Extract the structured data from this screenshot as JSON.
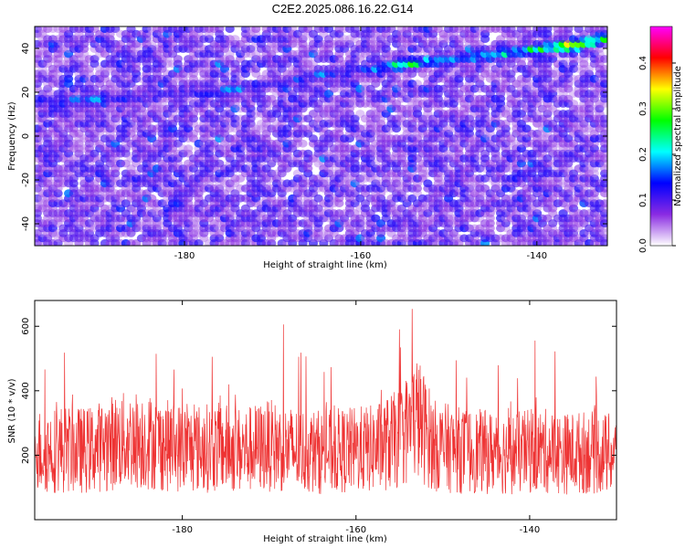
{
  "title": "C2E2.2025.086.16.22.G14",
  "chart_data": [
    {
      "type": "heatmap",
      "xlabel": "Height of straight line (km)",
      "ylabel": "Frequency (Hz)",
      "xlim": [
        -197,
        -132
      ],
      "ylim": [
        -50,
        50
      ],
      "xticks": [
        -180,
        -160,
        -140
      ],
      "yticks": [
        -40,
        -20,
        0,
        20,
        40
      ],
      "colorbar": {
        "label": "Normalized spectral amplitude",
        "range": [
          0,
          0.48
        ],
        "ticks": [
          0.0,
          0.1,
          0.2,
          0.3,
          0.4
        ],
        "colors": [
          "#ffffff",
          "#8a2be2",
          "#0000ff",
          "#00ffff",
          "#00ff00",
          "#ffff00",
          "#ff0000",
          "#ff00ff"
        ]
      },
      "ridge": {
        "x": [
          -197,
          -190,
          -185,
          -180,
          -175,
          -170,
          -165,
          -160,
          -155,
          -150,
          -145,
          -140,
          -135,
          -132
        ],
        "y": [
          16,
          17,
          18,
          19,
          21,
          24,
          28,
          30,
          33,
          35,
          37,
          40,
          42,
          45
        ],
        "amplitude": [
          0.18,
          0.2,
          0.15,
          0.12,
          0.22,
          0.15,
          0.2,
          0.16,
          0.32,
          0.25,
          0.25,
          0.3,
          0.45,
          0.3
        ]
      }
    },
    {
      "type": "line",
      "xlabel": "Height of straight line (km)",
      "ylabel": "SNR (10 * v/v)",
      "xlim": [
        -197,
        -130
      ],
      "ylim": [
        0,
        680
      ],
      "xticks": [
        -180,
        -160,
        -140
      ],
      "yticks": [
        200,
        400,
        600
      ],
      "color": "#ee3333",
      "series": [
        {
          "x": [
            -197,
            -194,
            -191,
            -188,
            -185,
            -182,
            -179,
            -176,
            -173,
            -170,
            -167,
            -164,
            -161,
            -158,
            -155,
            -153,
            -151,
            -148,
            -145,
            -142,
            -139,
            -136,
            -133,
            -130
          ],
          "y": [
            210,
            220,
            215,
            240,
            250,
            230,
            220,
            225,
            215,
            230,
            215,
            210,
            215,
            220,
            250,
            320,
            230,
            215,
            210,
            205,
            215,
            205,
            210,
            200
          ]
        }
      ]
    }
  ]
}
